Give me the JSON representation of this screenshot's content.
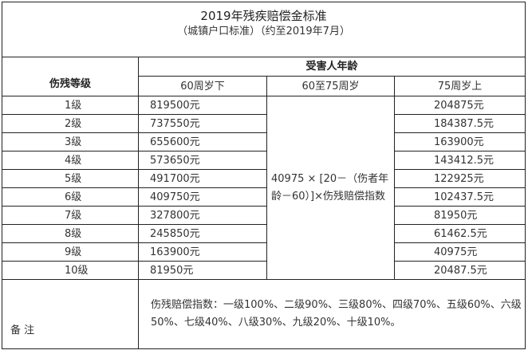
{
  "title": "2019年残疾赔偿金标准",
  "subtitle": "（城镇户口标准）（约至2019年7月）",
  "header": {
    "grade_label": "伤残等级",
    "age_group_label": "受害人年龄",
    "col_under60": "60周岁下",
    "col_60to75": "60至75周岁",
    "col_over75": "75周岁上"
  },
  "rows": [
    {
      "grade": "1级",
      "under60": "819500元",
      "over75": "204875元"
    },
    {
      "grade": "2级",
      "under60": "737550元",
      "over75": "184387.5元"
    },
    {
      "grade": "3级",
      "under60": "655600元",
      "over75": "163900元"
    },
    {
      "grade": "4级",
      "under60": "573650元",
      "over75": "143412.5元"
    },
    {
      "grade": "5级",
      "under60": "491700元",
      "over75": "122925元"
    },
    {
      "grade": "6级",
      "under60": "409750元",
      "over75": "102437.5元"
    },
    {
      "grade": "7级",
      "under60": "327800元",
      "over75": "81950元"
    },
    {
      "grade": "8级",
      "under60": "245850元",
      "over75": "61462.5元"
    },
    {
      "grade": "9级",
      "under60": "163900元",
      "over75": "40975元"
    },
    {
      "grade": "10级",
      "under60": "81950元",
      "over75": "20487.5元"
    }
  ],
  "formula_60to75": "40975 × [20－（伤者年龄－60）]×伤残赔偿指数",
  "note": {
    "label": "备 注",
    "text": "伤残赔偿指数：一级100%、二级90%、三级80%、四级70%、五级60%、六级50%、七级40%、八级30%、九级20%、十级10%。"
  }
}
